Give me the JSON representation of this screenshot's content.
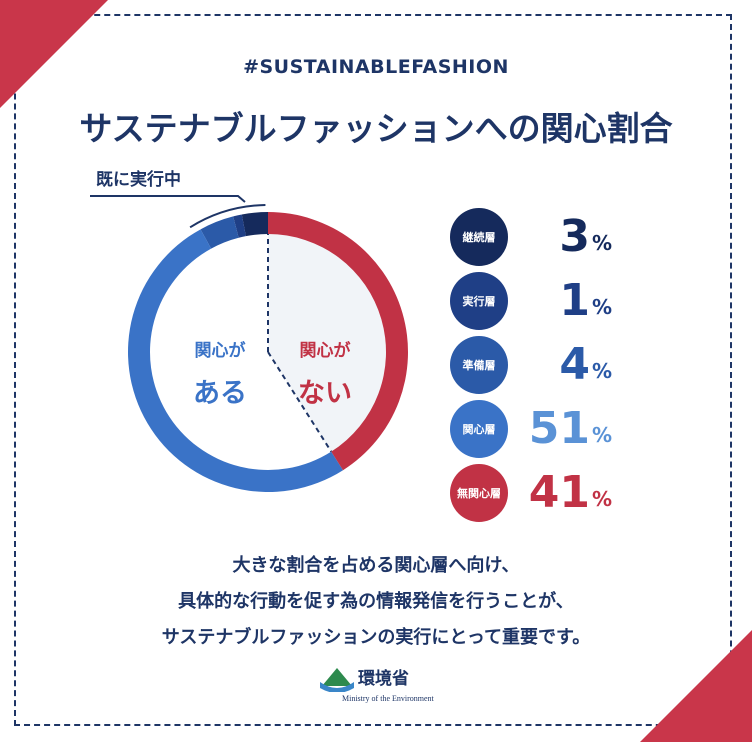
{
  "hashtag": "#SUSTAINABLEFASHION",
  "title": "サステナブルファッションへの関心割合",
  "callout_label": "既に実行中",
  "labels": {
    "interested_small": "関心が",
    "interested_big": "ある",
    "not_interested_small": "関心が",
    "not_interested_big": "ない"
  },
  "legend": [
    {
      "label": "継続層",
      "value": "3",
      "unit": "%",
      "color": "#152a5c",
      "text_color": "#152a5c"
    },
    {
      "label": "実行層",
      "value": "1",
      "unit": "%",
      "color": "#1f3f86",
      "text_color": "#1f3f86"
    },
    {
      "label": "準備層",
      "value": "4",
      "unit": "%",
      "color": "#2b5aa8",
      "text_color": "#2b5aa8"
    },
    {
      "label": "関心層",
      "value": "51",
      "unit": "%",
      "color": "#3a73c7",
      "text_color": "#5a92d6"
    },
    {
      "label": "無関心層",
      "value": "41",
      "unit": "%",
      "color": "#c13245",
      "text_color": "#c13245"
    }
  ],
  "bottom_text": [
    "大きな割合を占める関心層へ向け、",
    "具体的な行動を促す為の情報発信を行うことが、",
    "サステナブルファッションの実行にとって重要です。"
  ],
  "logo": {
    "name": "環境省",
    "sub": "Ministry of the Environment"
  },
  "chart_data": {
    "type": "pie",
    "variant": "donut",
    "title": "サステナブルファッションへの関心割合",
    "unit": "%",
    "categories": [
      "継続層",
      "実行層",
      "準備層",
      "関心層",
      "無関心層"
    ],
    "values": [
      3,
      1,
      4,
      51,
      41
    ],
    "colors": [
      "#152a5c",
      "#1f3f86",
      "#2b5aa8",
      "#3a73c7",
      "#c13245"
    ],
    "groups": [
      {
        "name": "関心がある",
        "categories": [
          "継続層",
          "実行層",
          "準備層",
          "関心層"
        ]
      },
      {
        "name": "関心がない",
        "categories": [
          "無関心層"
        ]
      }
    ],
    "direction": "counterclockwise from top"
  }
}
